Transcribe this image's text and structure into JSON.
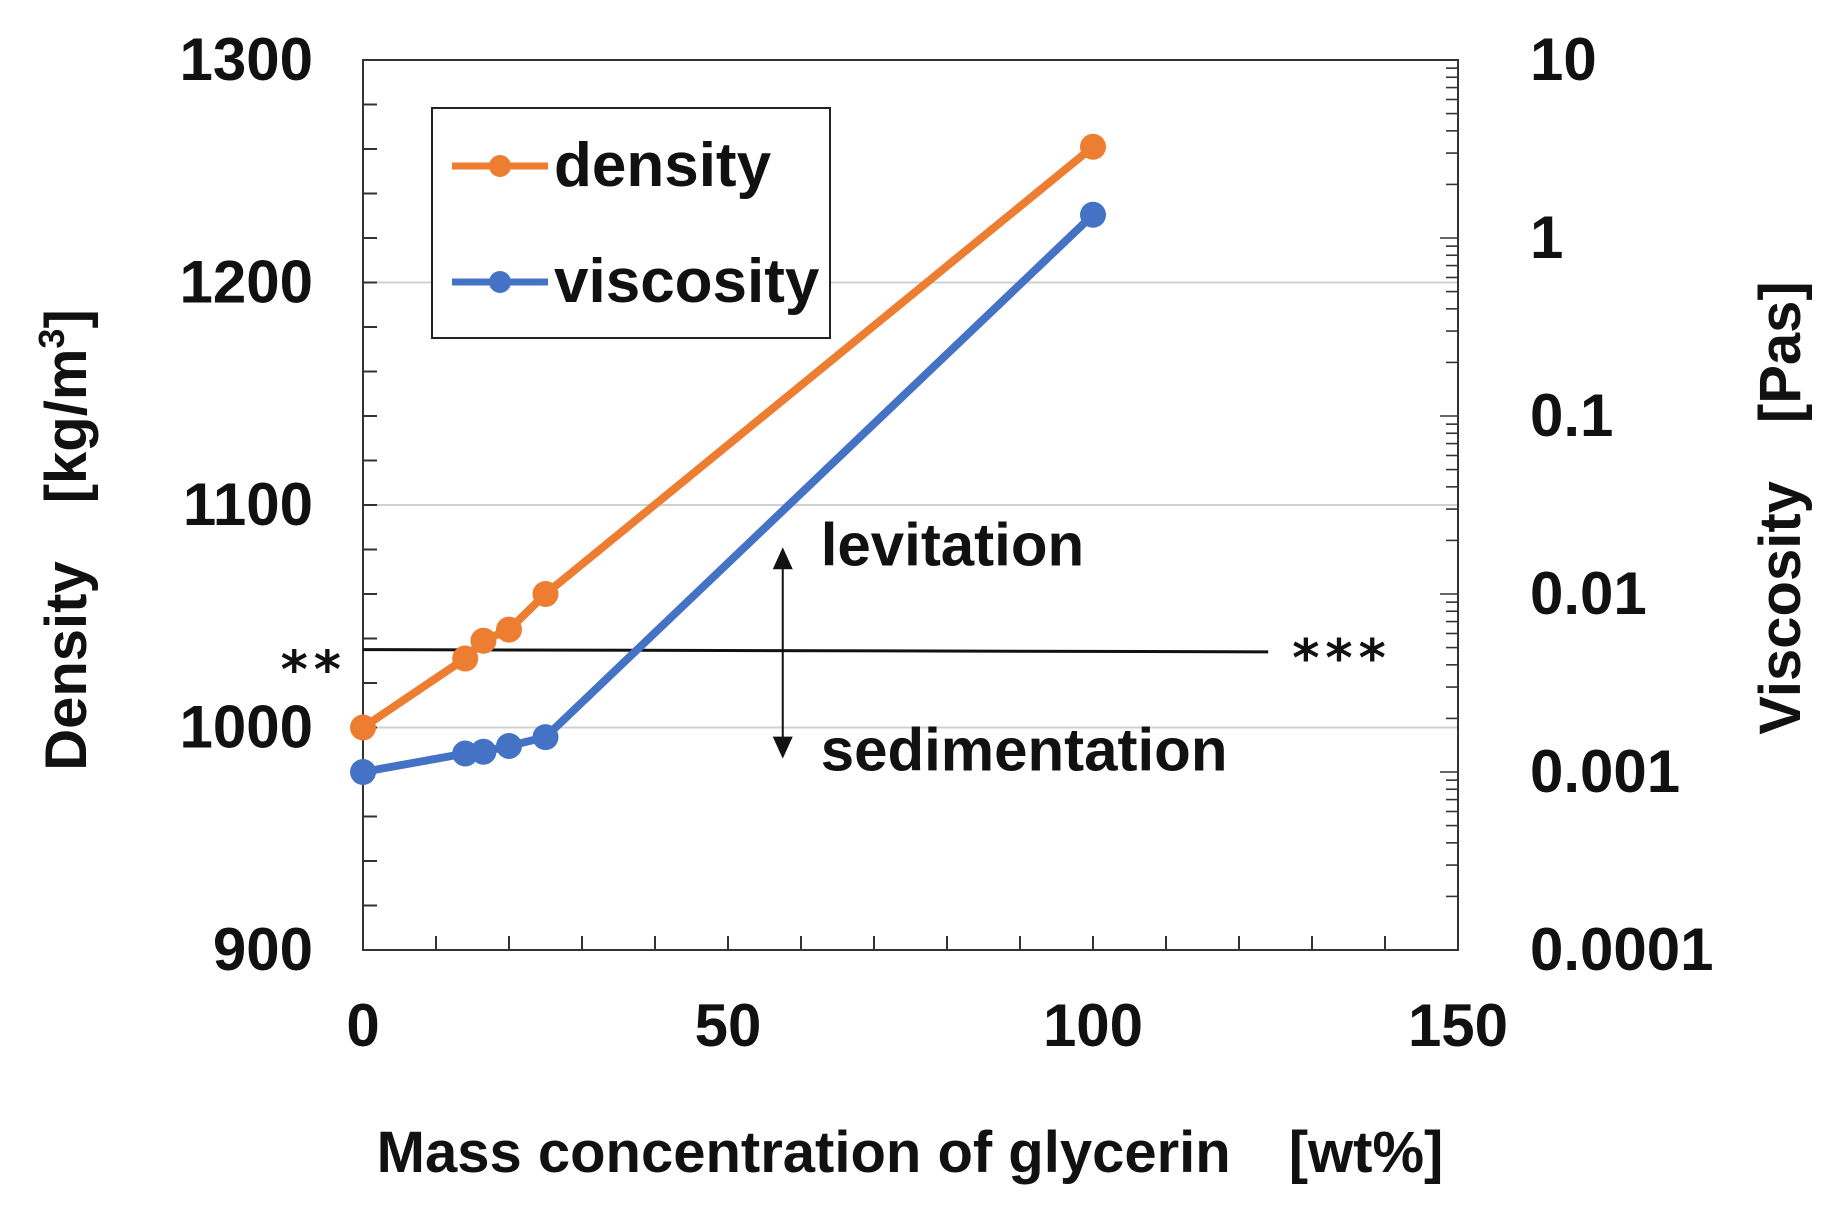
{
  "chart_data": {
    "type": "line",
    "title": "",
    "xlabel": "Mass concentration of glycerin　[wt%]",
    "ylabel_left": "Density　[kg/m",
    "ylabel_left_sup": "3",
    "ylabel_left_close": "]",
    "ylabel_right": "Viscosity　[Pas]",
    "xlim": [
      0,
      150
    ],
    "ylim_left": [
      900,
      1300
    ],
    "ylim_right": [
      0.0001,
      10
    ],
    "y_right_scale": "log",
    "grid": true,
    "legend_position": "top-left",
    "x_ticks": [
      "0",
      "50",
      "100",
      "150"
    ],
    "y_left_ticks": [
      "900",
      "1000",
      "1100",
      "1200",
      "1300"
    ],
    "y_right_ticks": [
      "0.0001",
      "0.001",
      "0.01",
      "0.1",
      "1",
      "10"
    ],
    "series": [
      {
        "name": "density",
        "axis": "left",
        "color": "#ED7D31",
        "x": [
          0,
          14,
          16.5,
          20,
          25,
          100
        ],
        "values": [
          1000,
          1031,
          1039,
          1044,
          1060,
          1261
        ]
      },
      {
        "name": "viscosity",
        "axis": "right",
        "color": "#4472C4",
        "x": [
          0,
          14,
          16.5,
          20,
          25,
          100
        ],
        "values": [
          0.001,
          0.00127,
          0.0013,
          0.0014,
          0.00157,
          1.35
        ]
      }
    ],
    "reference_line": {
      "axis": "left",
      "x": [
        0,
        124
      ],
      "values": [
        1035,
        1034
      ],
      "left_label": "**",
      "right_label": "***"
    },
    "annotations": {
      "up_label": "levitation",
      "down_label": "sedimentation",
      "arrow_x": 57.5,
      "arrow_center": 1035,
      "arrow_top": 1081,
      "arrow_bottom": 986
    }
  }
}
